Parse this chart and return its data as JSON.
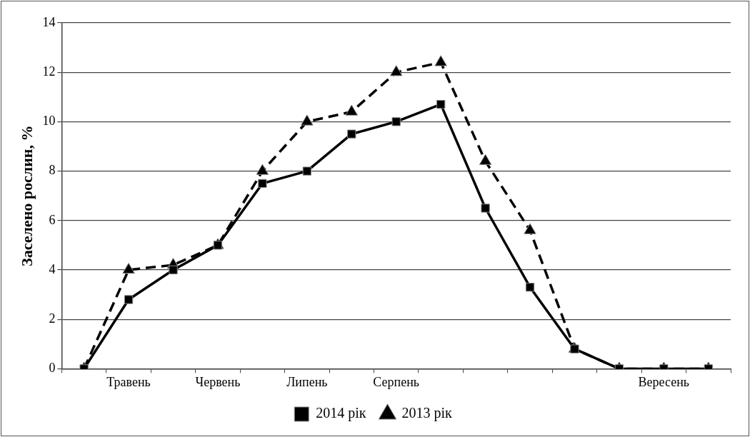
{
  "chart_data": {
    "type": "line",
    "ylabel": "Заселено рослин, %",
    "categories": [
      null,
      "Травень",
      null,
      "Червень",
      null,
      "Липень",
      null,
      "Серпень",
      null,
      null,
      null,
      null,
      null,
      "Вересень",
      null
    ],
    "series": [
      {
        "name": "2014 рік",
        "color": "#000000",
        "marker": "square",
        "line_style": "solid",
        "values": [
          0,
          2.8,
          4,
          5,
          7.5,
          8,
          9.5,
          10,
          10.7,
          6.5,
          3.3,
          0.8,
          0,
          0,
          0
        ]
      },
      {
        "name": "2013 рік",
        "color": "#000000",
        "marker": "triangle",
        "line_style": "dashed",
        "values": [
          0,
          4,
          4.2,
          5,
          8,
          10,
          10.4,
          12,
          12.4,
          8.4,
          5.6,
          0.8,
          0,
          0,
          0
        ]
      }
    ],
    "ylim": [
      0,
      14
    ],
    "yticks": [
      0,
      2,
      4,
      6,
      8,
      10,
      12,
      14
    ],
    "grid": "y",
    "legend": "bottom"
  }
}
